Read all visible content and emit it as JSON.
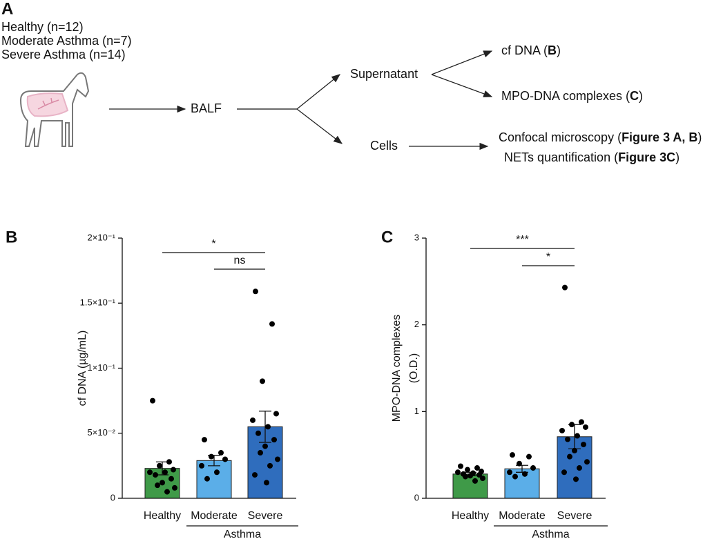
{
  "panel_a": {
    "letter": "A",
    "groups": [
      "Healthy (n=12)",
      "Moderate Asthma (n=7)",
      "Severe Asthma (n=14)"
    ],
    "sample": "BALF",
    "supernatant": "Supernatant",
    "cells": "Cells",
    "outputs": [
      {
        "prefix": "cf DNA (",
        "bold": "B",
        "suffix": ")"
      },
      {
        "prefix": "MPO-DNA complexes (",
        "bold": "C",
        "suffix": ")"
      },
      {
        "prefix": "Confocal microscopy (",
        "bold": "Figure 3 A, B",
        "suffix": ")"
      },
      {
        "prefix": "NETs quantification (",
        "bold": "Figure 3C",
        "suffix": ")"
      }
    ]
  },
  "chart_data": [
    {
      "type": "bar",
      "panel": "B",
      "ylabel": [
        "cf DNA (µg/mL)"
      ],
      "categories": [
        "Healthy",
        "Moderate",
        "Severe"
      ],
      "group_label": "Asthma",
      "colors": [
        "#3f9a48",
        "#5baee8",
        "#2f6dbd"
      ],
      "values": [
        0.023,
        0.029,
        0.055
      ],
      "errors": [
        0.005,
        0.004,
        0.012
      ],
      "points": [
        [
          0.075,
          0.028,
          0.025,
          0.022,
          0.02,
          0.02,
          0.018,
          0.015,
          0.012,
          0.01,
          0.008,
          0.005
        ],
        [
          0.045,
          0.035,
          0.032,
          0.03,
          0.025,
          0.02,
          0.015
        ],
        [
          0.159,
          0.134,
          0.09,
          0.065,
          0.06,
          0.055,
          0.05,
          0.045,
          0.04,
          0.035,
          0.03,
          0.025,
          0.018,
          0.012
        ]
      ],
      "ylim": [
        0,
        0.2
      ],
      "yticks": [
        0,
        {
          "value": 0.05,
          "label": "5×10⁻²"
        },
        {
          "value": 0.1,
          "label": "1×10⁻¹"
        },
        {
          "value": 0.15,
          "label": "1.5×10⁻¹"
        },
        {
          "value": 0.2,
          "label": "2×10⁻¹"
        }
      ],
      "significance": [
        "*",
        "ns"
      ]
    },
    {
      "type": "bar",
      "panel": "C",
      "ylabel": [
        "MPO-DNA complexes",
        "(O.D.)"
      ],
      "categories": [
        "Healthy",
        "Moderate",
        "Severe"
      ],
      "group_label": "Asthma",
      "colors": [
        "#3f9a48",
        "#5baee8",
        "#2f6dbd"
      ],
      "values": [
        0.28,
        0.34,
        0.71
      ],
      "errors": [
        0.02,
        0.04,
        0.14
      ],
      "points": [
        [
          0.37,
          0.35,
          0.33,
          0.31,
          0.3,
          0.29,
          0.28,
          0.27,
          0.26,
          0.25,
          0.23,
          0.2
        ],
        [
          0.5,
          0.48,
          0.4,
          0.35,
          0.3,
          0.28,
          0.25
        ],
        [
          2.43,
          0.88,
          0.85,
          0.82,
          0.78,
          0.72,
          0.68,
          0.62,
          0.55,
          0.48,
          0.42,
          0.35,
          0.3,
          0.22
        ]
      ],
      "ylim": [
        0,
        3
      ],
      "yticks": [
        0,
        1,
        2,
        3
      ],
      "significance": [
        "***",
        "*"
      ]
    }
  ]
}
